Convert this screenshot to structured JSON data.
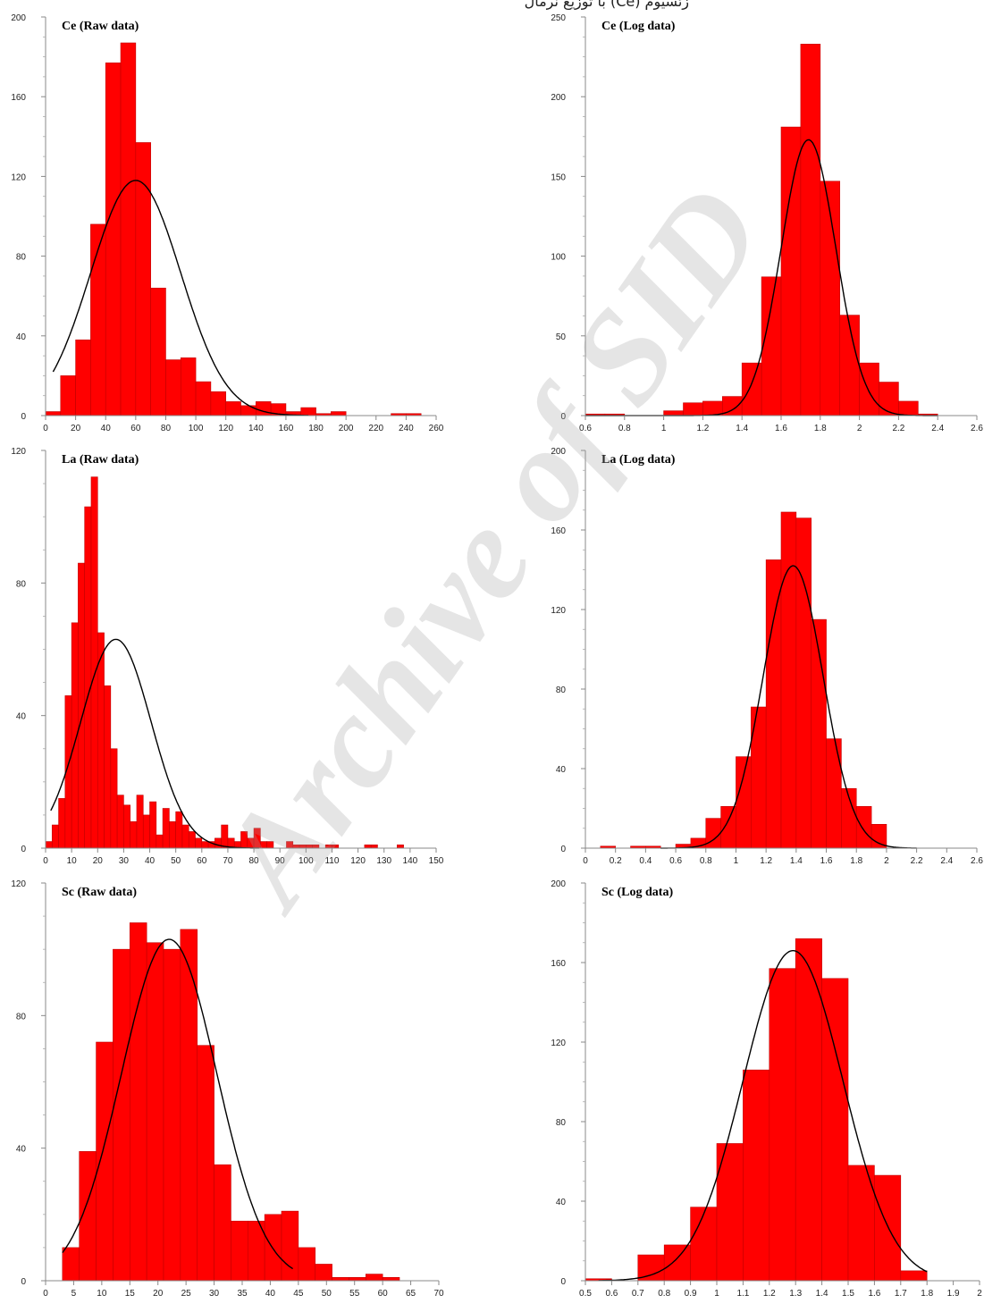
{
  "header_text": "زئسيوم (Ce) با توزيع نرمال",
  "watermark": "Archive of SID",
  "chart_data": [
    {
      "type": "bar",
      "title": "Ce (Raw data)",
      "xlim": [
        0,
        260
      ],
      "ylim": [
        0,
        200
      ],
      "xticks": [
        0,
        20,
        40,
        60,
        80,
        100,
        120,
        140,
        160,
        180,
        200,
        220,
        240,
        260
      ],
      "yticks": [
        0,
        40,
        80,
        120,
        160,
        200
      ],
      "bin_edges": [
        0,
        10,
        20,
        30,
        40,
        50,
        60,
        70,
        80,
        90,
        100,
        110,
        120,
        130,
        140,
        150,
        160,
        170,
        180,
        190,
        200,
        210,
        220,
        230,
        240,
        250
      ],
      "values": [
        2,
        20,
        38,
        96,
        177,
        187,
        137,
        64,
        28,
        29,
        17,
        12,
        7,
        5,
        7,
        6,
        2,
        4,
        1,
        2,
        0,
        0,
        0,
        1,
        1
      ],
      "normal_curve": {
        "mean": 60,
        "sd": 30,
        "peak": 118
      },
      "curve_range": [
        5,
        175
      ]
    },
    {
      "type": "bar",
      "title": "Ce (Log data)",
      "xlim": [
        0.6,
        2.6
      ],
      "ylim": [
        0,
        250
      ],
      "xticks": [
        0.6,
        0.8,
        1,
        1.2,
        1.4,
        1.6,
        1.8,
        2,
        2.2,
        2.4,
        2.6
      ],
      "yticks": [
        0,
        50,
        100,
        150,
        200,
        250
      ],
      "bin_edges": [
        0.6,
        0.7,
        0.8,
        0.9,
        1.0,
        1.1,
        1.2,
        1.3,
        1.4,
        1.5,
        1.6,
        1.7,
        1.8,
        1.9,
        2.0,
        2.1,
        2.2,
        2.3,
        2.4
      ],
      "values": [
        1,
        1,
        0,
        0,
        3,
        8,
        9,
        12,
        33,
        87,
        181,
        233,
        147,
        63,
        33,
        21,
        9,
        1
      ],
      "normal_curve": {
        "mean": 1.74,
        "sd": 0.14,
        "peak": 173
      },
      "curve_range": [
        0.6,
        2.4
      ]
    },
    {
      "type": "bar",
      "title": "La (Raw data)",
      "xlim": [
        0,
        150
      ],
      "ylim": [
        0,
        120
      ],
      "xticks": [
        0,
        10,
        20,
        30,
        40,
        50,
        60,
        70,
        80,
        90,
        100,
        110,
        120,
        130,
        140,
        150
      ],
      "yticks": [
        0,
        40,
        80,
        120
      ],
      "bin_edges": [
        0,
        2.5,
        5,
        7.5,
        10,
        12.5,
        15,
        17.5,
        20,
        22.5,
        25,
        27.5,
        30,
        32.5,
        35,
        37.5,
        40,
        42.5,
        45,
        47.5,
        50,
        52.5,
        55,
        57.5,
        60,
        62.5,
        65,
        67.5,
        70,
        72.5,
        75,
        77.5,
        80,
        82.5,
        85,
        87.5,
        90,
        92.5,
        95,
        97.5,
        100,
        102.5,
        105,
        107.5,
        110,
        112.5,
        115,
        117.5,
        120,
        122.5,
        125,
        127.5,
        130,
        132.5,
        135,
        137.5
      ],
      "values": [
        2,
        7,
        15,
        46,
        68,
        86,
        103,
        112,
        65,
        49,
        30,
        16,
        13,
        8,
        16,
        10,
        14,
        4,
        12,
        8,
        11,
        7,
        5,
        3,
        2,
        2,
        3,
        7,
        3,
        2,
        5,
        3,
        6,
        2,
        2,
        0,
        0,
        2,
        1,
        1,
        1,
        1,
        0,
        1,
        1,
        0,
        0,
        0,
        0,
        1,
        1,
        0,
        0,
        0,
        1,
        1
      ],
      "normal_curve": {
        "mean": 27,
        "sd": 13.5,
        "peak": 63
      },
      "curve_range": [
        2,
        82
      ]
    },
    {
      "type": "bar",
      "title": "La (Log data)",
      "xlim": [
        0,
        2.6
      ],
      "ylim": [
        0,
        200
      ],
      "xticks": [
        0,
        0.2,
        0.4,
        0.6,
        0.8,
        1,
        1.2,
        1.4,
        1.6,
        1.8,
        2,
        2.2,
        2.4,
        2.6
      ],
      "yticks": [
        0,
        40,
        80,
        120,
        160,
        200
      ],
      "bin_edges": [
        0.1,
        0.2,
        0.3,
        0.4,
        0.5,
        0.6,
        0.7,
        0.8,
        0.9,
        1.0,
        1.1,
        1.2,
        1.3,
        1.4,
        1.5,
        1.6,
        1.7,
        1.8,
        1.9,
        2.0
      ],
      "values": [
        1,
        0,
        1,
        1,
        0,
        2,
        5,
        15,
        21,
        46,
        71,
        145,
        169,
        166,
        115,
        55,
        30,
        21,
        12
      ],
      "normal_curve": {
        "mean": 1.38,
        "sd": 0.2,
        "peak": 142
      },
      "curve_range": [
        0.5,
        2.2
      ]
    },
    {
      "type": "bar",
      "title": "Sc (Raw data)",
      "xlim": [
        0,
        70
      ],
      "ylim": [
        0,
        120
      ],
      "xticks": [
        0,
        5,
        10,
        15,
        20,
        25,
        30,
        35,
        40,
        45,
        50,
        55,
        60,
        65,
        70
      ],
      "yticks": [
        0,
        40,
        80,
        120
      ],
      "bin_edges": [
        3,
        6,
        9,
        12,
        15,
        18,
        21,
        24,
        27,
        30,
        33,
        36,
        39,
        42,
        45,
        48,
        51,
        54,
        57,
        60,
        63
      ],
      "values": [
        10,
        39,
        72,
        100,
        108,
        102,
        100,
        106,
        71,
        35,
        18,
        18,
        20,
        21,
        10,
        5,
        1,
        1,
        2,
        1
      ],
      "normal_curve": {
        "mean": 22,
        "sd": 8.5,
        "peak": 103
      },
      "curve_range": [
        3,
        44
      ]
    },
    {
      "type": "bar",
      "title": "Sc (Log data)",
      "xlim": [
        0.5,
        2
      ],
      "ylim": [
        0,
        200
      ],
      "xticks": [
        0.5,
        0.6,
        0.7,
        0.8,
        0.9,
        1,
        1.1,
        1.2,
        1.3,
        1.4,
        1.5,
        1.6,
        1.7,
        1.8,
        1.9,
        2
      ],
      "yticks": [
        0,
        40,
        80,
        120,
        160,
        200
      ],
      "bin_edges": [
        0.5,
        0.6,
        0.7,
        0.8,
        0.9,
        1.0,
        1.1,
        1.2,
        1.3,
        1.4,
        1.5,
        1.6,
        1.7,
        1.8
      ],
      "values": [
        1,
        0,
        13,
        18,
        37,
        69,
        106,
        157,
        172,
        152,
        58,
        53,
        5
      ],
      "normal_curve": {
        "mean": 1.29,
        "sd": 0.19,
        "peak": 166
      },
      "curve_range": [
        0.55,
        1.8
      ]
    }
  ]
}
